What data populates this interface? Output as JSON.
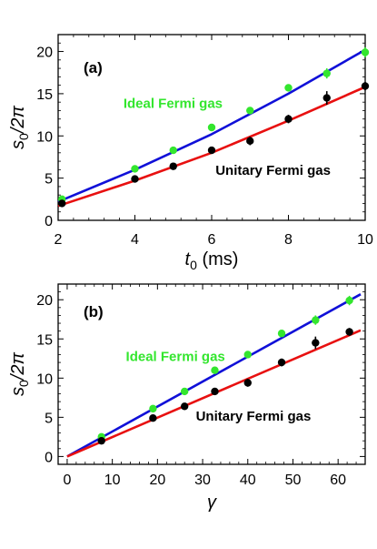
{
  "colors": {
    "ideal": "#33e62e",
    "unitary": "#000000",
    "ideal_fit": "#1010d8",
    "unitary_fit": "#e81010"
  },
  "chart_data": [
    {
      "type": "scatter",
      "panel_label": "(a)",
      "xlabel_main": "t",
      "xlabel_sub": "0",
      "xlabel_unit": " (ms)",
      "ylabel_main": "s",
      "ylabel_sub": "0",
      "ylabel_rest": "/2π",
      "xlim": [
        2,
        10
      ],
      "ylim": [
        0,
        22
      ],
      "xticks": [
        2,
        4,
        6,
        8,
        10
      ],
      "yticks": [
        0,
        5,
        10,
        15,
        20
      ],
      "grid": false,
      "annotations": [
        {
          "text": "Ideal Fermi gas",
          "series": "ideal",
          "at": [
            3.7,
            13.3
          ]
        },
        {
          "text": "Unitary Fermi gas",
          "series": "unitary",
          "at": [
            6.1,
            5.4
          ]
        }
      ],
      "series": [
        {
          "key": "ideal",
          "x": [
            2.1,
            4,
            5,
            6,
            7,
            8,
            9,
            10
          ],
          "y": [
            2.5,
            6.1,
            8.3,
            11.0,
            13.0,
            15.7,
            17.4,
            19.9
          ],
          "yerr": [
            0.2,
            0.2,
            0.2,
            0.3,
            0.2,
            0.3,
            0.6,
            0.6
          ]
        },
        {
          "key": "unitary",
          "x": [
            2.1,
            4,
            5,
            6,
            7,
            8,
            9,
            10
          ],
          "y": [
            2.0,
            4.9,
            6.4,
            8.3,
            9.4,
            12.0,
            14.5,
            15.9
          ],
          "yerr": [
            0.2,
            0.2,
            0.2,
            0.3,
            0.5,
            0.5,
            0.8,
            0.5
          ]
        }
      ],
      "fits": [
        {
          "key": "ideal_fit",
          "x": [
            2,
            4,
            6,
            8,
            10
          ],
          "y": [
            2.2,
            6.0,
            10.2,
            15.0,
            20.2
          ]
        },
        {
          "key": "unitary_fit",
          "x": [
            2,
            4,
            6,
            8,
            10
          ],
          "y": [
            1.7,
            4.7,
            8.0,
            11.8,
            15.8
          ]
        }
      ]
    },
    {
      "type": "scatter",
      "panel_label": "(b)",
      "xlabel_main": "γ",
      "xlabel_sub": "",
      "xlabel_unit": "",
      "ylabel_main": "s",
      "ylabel_sub": "0",
      "ylabel_rest": "/2π",
      "xlim": [
        -2,
        66
      ],
      "ylim": [
        -1,
        22
      ],
      "xticks": [
        0,
        10,
        20,
        30,
        40,
        50,
        60
      ],
      "yticks": [
        0,
        5,
        10,
        15,
        20
      ],
      "grid": false,
      "annotations": [
        {
          "text": "Ideal Fermi gas",
          "series": "ideal",
          "at": [
            13,
            12.2
          ]
        },
        {
          "text": "Unitary Fermi gas",
          "series": "unitary",
          "at": [
            28.5,
            4.6
          ]
        }
      ],
      "series": [
        {
          "key": "ideal",
          "x": [
            7.6,
            19.0,
            26.0,
            32.7,
            40.0,
            47.5,
            55.0,
            62.5
          ],
          "y": [
            2.5,
            6.1,
            8.3,
            11.0,
            13.0,
            15.7,
            17.4,
            19.9
          ],
          "yerr": [
            0.2,
            0.2,
            0.2,
            0.3,
            0.2,
            0.3,
            0.6,
            0.6
          ]
        },
        {
          "key": "unitary",
          "x": [
            7.6,
            19.0,
            26.0,
            32.7,
            40.0,
            47.5,
            55.0,
            62.5
          ],
          "y": [
            2.0,
            4.9,
            6.4,
            8.3,
            9.4,
            12.0,
            14.5,
            15.9
          ],
          "yerr": [
            0.2,
            0.2,
            0.2,
            0.3,
            0.5,
            0.5,
            0.8,
            0.5
          ]
        }
      ],
      "fits": [
        {
          "key": "ideal_fit",
          "x": [
            0,
            65
          ],
          "y": [
            0,
            20.7
          ]
        },
        {
          "key": "unitary_fit",
          "x": [
            0,
            65
          ],
          "y": [
            0,
            16.1
          ]
        }
      ]
    }
  ]
}
